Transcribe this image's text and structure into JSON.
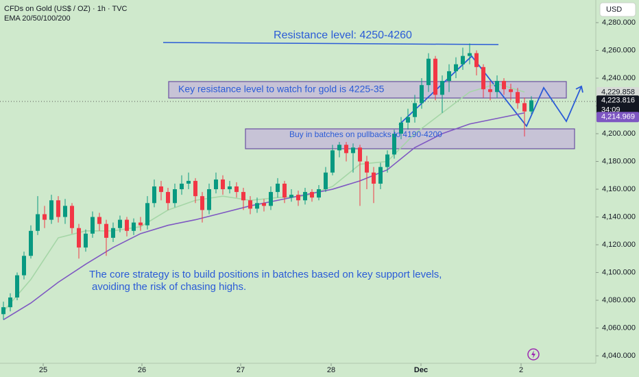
{
  "chart_data": {
    "type": "candlestick",
    "title": "CFDs on Gold (US$ / OZ) · 1h · TVC",
    "subtitle": "EMA 20/50/100/200",
    "currency": "USD",
    "ylim": [
      4034.6,
      4296.3
    ],
    "yticks": [
      {
        "value": 4040,
        "label": "4,040.000"
      },
      {
        "value": 4060,
        "label": "4,060.000"
      },
      {
        "value": 4080,
        "label": "4,080.000"
      },
      {
        "value": 4100,
        "label": "4,100.000"
      },
      {
        "value": 4120,
        "label": "4,120.000"
      },
      {
        "value": 4140,
        "label": "4,140.000"
      },
      {
        "value": 4160,
        "label": "4,160.000"
      },
      {
        "value": 4180,
        "label": "4,180.000"
      },
      {
        "value": 4200,
        "label": "4,200.000"
      },
      {
        "value": 4220,
        "label": "4,220.000"
      },
      {
        "value": 4240,
        "label": "4,240.000"
      },
      {
        "value": 4260,
        "label": "4,260.000"
      },
      {
        "value": 4280,
        "label": "4,280.000"
      }
    ],
    "xlim": [
      -0.5,
      86.3
    ],
    "xticks": [
      {
        "value": 5.8,
        "label": "25"
      },
      {
        "value": 20.2,
        "label": "26"
      },
      {
        "value": 34.6,
        "label": "27"
      },
      {
        "value": 47.8,
        "label": "28"
      },
      {
        "value": 60.9,
        "label": "Dec"
      },
      {
        "value": 75.5,
        "label": "2"
      }
    ],
    "grid": false,
    "up_color": "#089981",
    "down_color": "#f23645",
    "open": [
      4070,
      4075,
      4082,
      4098,
      4112,
      4130,
      4142,
      4138,
      4152,
      4140,
      4148,
      4132,
      4118,
      4128,
      4140,
      4135,
      4125,
      4132,
      4138,
      4130,
      4136,
      4134,
      4150,
      4162,
      4158,
      4150,
      4160,
      4164,
      4166,
      4155,
      4145,
      4160,
      4167,
      4160,
      4162,
      4158,
      4152,
      4146,
      4150,
      4148,
      4158,
      4164,
      4154,
      4156,
      4152,
      4158,
      4154,
      4160,
      4172,
      4188,
      4192,
      4186,
      4190,
      4180,
      4172,
      4164,
      4176,
      4185,
      4200,
      4208,
      4212,
      4222,
      4235,
      4254,
      4228,
      4238,
      4245,
      4250,
      4256,
      4258,
      4248,
      4232,
      4230,
      4238,
      4232,
      4230,
      4222,
      4216
    ],
    "high": [
      4079,
      4085,
      4100,
      4115,
      4134,
      4155,
      4148,
      4156,
      4155,
      4153,
      4150,
      4135,
      4131,
      4144,
      4143,
      4138,
      4136,
      4141,
      4140,
      4139,
      4140,
      4155,
      4167,
      4166,
      4161,
      4164,
      4170,
      4172,
      4168,
      4158,
      4164,
      4172,
      4170,
      4166,
      4165,
      4161,
      4155,
      4154,
      4153,
      4162,
      4168,
      4166,
      4160,
      4159,
      4161,
      4160,
      4163,
      4176,
      4192,
      4194,
      4194,
      4193,
      4192,
      4184,
      4176,
      4179,
      4188,
      4203,
      4212,
      4218,
      4228,
      4240,
      4258,
      4256,
      4242,
      4250,
      4255,
      4262,
      4265,
      4260,
      4250,
      4238,
      4242,
      4240,
      4236,
      4233,
      4226,
      4227
    ],
    "low": [
      4066,
      4072,
      4080,
      4095,
      4110,
      4127,
      4132,
      4135,
      4136,
      4135,
      4128,
      4110,
      4115,
      4125,
      4130,
      4112,
      4122,
      4129,
      4126,
      4127,
      4130,
      4131,
      4147,
      4152,
      4145,
      4147,
      4156,
      4160,
      4150,
      4136,
      4142,
      4157,
      4156,
      4157,
      4154,
      4145,
      4142,
      4143,
      4144,
      4145,
      4154,
      4150,
      4151,
      4148,
      4149,
      4151,
      4152,
      4158,
      4170,
      4183,
      4180,
      4172,
      4148,
      4160,
      4150,
      4160,
      4172,
      4182,
      4196,
      4203,
      4208,
      4218,
      4230,
      4224,
      4215,
      4230,
      4240,
      4246,
      4250,
      4242,
      4226,
      4224,
      4226,
      4228,
      4224,
      4218,
      4198,
      4214
    ],
    "close": [
      4075,
      4082,
      4098,
      4112,
      4130,
      4142,
      4138,
      4152,
      4140,
      4148,
      4132,
      4118,
      4128,
      4140,
      4135,
      4125,
      4132,
      4138,
      4130,
      4136,
      4134,
      4150,
      4162,
      4158,
      4150,
      4160,
      4164,
      4166,
      4155,
      4145,
      4160,
      4167,
      4160,
      4162,
      4158,
      4152,
      4146,
      4150,
      4148,
      4158,
      4164,
      4154,
      4156,
      4152,
      4158,
      4154,
      4160,
      4172,
      4188,
      4192,
      4186,
      4190,
      4180,
      4172,
      4164,
      4176,
      4185,
      4200,
      4208,
      4212,
      4222,
      4235,
      4254,
      4228,
      4238,
      4245,
      4250,
      4256,
      4258,
      4248,
      4232,
      4230,
      4238,
      4232,
      4230,
      4222,
      4216,
      4224
    ],
    "series": [
      {
        "color": "#a5d6a7",
        "x": [
          0,
          4,
          8,
          12,
          16,
          20,
          24,
          28,
          32,
          36,
          40,
          44,
          48,
          52,
          56,
          60,
          64,
          68,
          72,
          76
        ],
        "values": [
          4072,
          4095,
          4125,
          4130,
          4130,
          4133,
          4145,
          4152,
          4155,
          4152,
          4154,
          4155,
          4162,
          4178,
          4180,
          4200,
          4215,
          4230,
          4236,
          4230
        ]
      },
      {
        "color": "#7e57c2",
        "x": [
          0,
          4,
          8,
          12,
          16,
          20,
          24,
          28,
          32,
          36,
          40,
          44,
          48,
          52,
          56,
          60,
          64,
          68,
          72,
          76
        ],
        "values": [
          4066,
          4078,
          4093,
          4106,
          4118,
          4128,
          4134,
          4138,
          4143,
          4148,
          4152,
          4156,
          4160,
          4166,
          4174,
          4190,
          4200,
          4207,
          4211,
          4215
        ]
      }
    ],
    "price_labels": [
      {
        "value": 4229.858,
        "label": "4,229.858",
        "color": "#d7dbd7",
        "text_color": "#131722"
      },
      {
        "value": 4223.816,
        "label": "4,223.816",
        "color": "#131722",
        "text_color": "#ffffff"
      },
      {
        "value": 4214.969,
        "label": "4,214.969",
        "color": "#7e57c2",
        "text_color": "#ffffff"
      }
    ],
    "countdown": "34:09",
    "annotations": [
      "Resistance level: 4250-4260",
      "Key resistance level to watch for gold is 4225-35",
      "Buy in batches on pullbacks to 4190-4200",
      "The core strategy is to build positions in batches based on key support levels,",
      "avoiding the risk of chasing highs."
    ]
  }
}
